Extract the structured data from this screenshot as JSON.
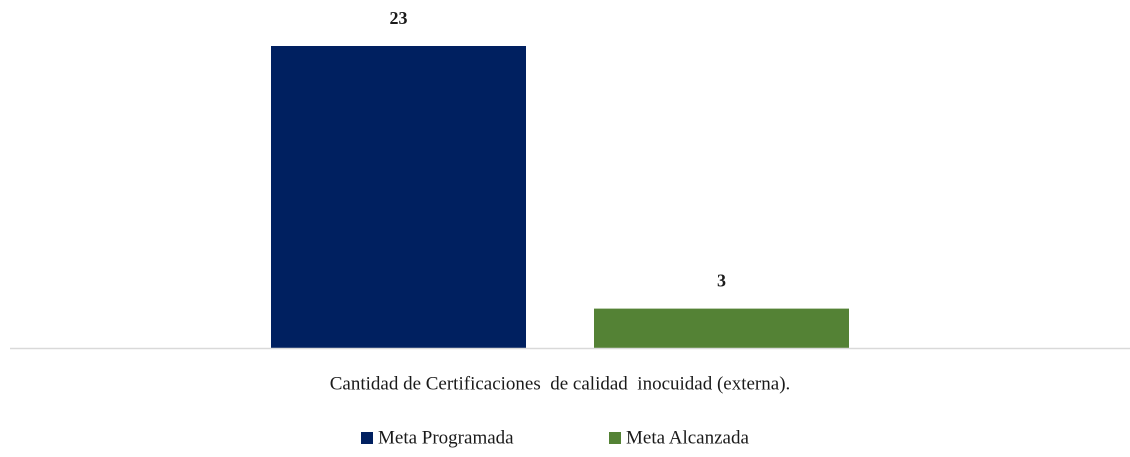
{
  "chart_data": {
    "type": "bar",
    "categories": [
      "Cantidad de Certificaciones  de calidad  inocuidad (externa)."
    ],
    "series": [
      {
        "name": "Meta Programada",
        "color": "#002060",
        "values": [
          23
        ]
      },
      {
        "name": "Meta Alcanzada",
        "color": "#548235",
        "values": [
          3
        ]
      }
    ]
  }
}
